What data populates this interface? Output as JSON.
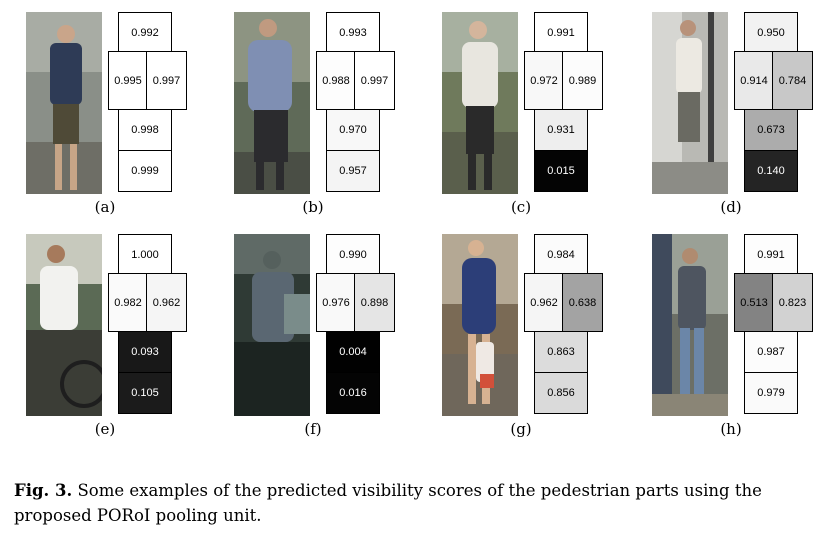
{
  "panels": [
    {
      "label": "(a)",
      "scores": {
        "top": "0.992",
        "left": "0.995",
        "right": "0.997",
        "mid": "0.998",
        "bottom": "0.999"
      },
      "shades": {
        "top": "#ffffff",
        "left": "#ffffff",
        "right": "#ffffff",
        "mid": "#ffffff",
        "bottom": "#ffffff"
      },
      "text_colors": {
        "top": "#000",
        "left": "#000",
        "right": "#000",
        "mid": "#000",
        "bottom": "#000"
      }
    },
    {
      "label": "(b)",
      "scores": {
        "top": "0.993",
        "left": "0.988",
        "right": "0.997",
        "mid": "0.970",
        "bottom": "0.957"
      },
      "shades": {
        "top": "#ffffff",
        "left": "#fdfdfd",
        "right": "#ffffff",
        "mid": "#f8f8f8",
        "bottom": "#f4f4f4"
      },
      "text_colors": {
        "top": "#000",
        "left": "#000",
        "right": "#000",
        "mid": "#000",
        "bottom": "#000"
      }
    },
    {
      "label": "(c)",
      "scores": {
        "top": "0.991",
        "left": "0.972",
        "right": "0.989",
        "mid": "0.931",
        "bottom": "0.015"
      },
      "shades": {
        "top": "#ffffff",
        "left": "#f8f8f8",
        "right": "#fcfcfc",
        "mid": "#eeeeee",
        "bottom": "#040404"
      },
      "text_colors": {
        "top": "#000",
        "left": "#000",
        "right": "#000",
        "mid": "#000",
        "bottom": "#fff"
      }
    },
    {
      "label": "(d)",
      "scores": {
        "top": "0.950",
        "left": "0.914",
        "right": "0.784",
        "mid": "0.673",
        "bottom": "0.140"
      },
      "shades": {
        "top": "#f2f2f2",
        "left": "#e9e9e9",
        "right": "#c8c8c8",
        "mid": "#acacac",
        "bottom": "#242424"
      },
      "text_colors": {
        "top": "#000",
        "left": "#000",
        "right": "#000",
        "mid": "#000",
        "bottom": "#fff"
      }
    },
    {
      "label": "(e)",
      "scores": {
        "top": "1.000",
        "left": "0.982",
        "right": "0.962",
        "mid": "0.093",
        "bottom": "0.105"
      },
      "shades": {
        "top": "#ffffff",
        "left": "#fafafa",
        "right": "#f5f5f5",
        "mid": "#181818",
        "bottom": "#1b1b1b"
      },
      "text_colors": {
        "top": "#000",
        "left": "#000",
        "right": "#000",
        "mid": "#fff",
        "bottom": "#fff"
      }
    },
    {
      "label": "(f)",
      "scores": {
        "top": "0.990",
        "left": "0.976",
        "right": "0.898",
        "mid": "0.004",
        "bottom": "0.016"
      },
      "shades": {
        "top": "#fdfdfd",
        "left": "#f9f9f9",
        "right": "#e5e5e5",
        "mid": "#010101",
        "bottom": "#040404"
      },
      "text_colors": {
        "top": "#000",
        "left": "#000",
        "right": "#000",
        "mid": "#fff",
        "bottom": "#fff"
      }
    },
    {
      "label": "(g)",
      "scores": {
        "top": "0.984",
        "left": "0.962",
        "right": "0.638",
        "mid": "0.863",
        "bottom": "0.856"
      },
      "shades": {
        "top": "#fbfbfb",
        "left": "#f5f5f5",
        "right": "#a3a3a3",
        "mid": "#dcdcdc",
        "bottom": "#dadada"
      },
      "text_colors": {
        "top": "#000",
        "left": "#000",
        "right": "#000",
        "mid": "#000",
        "bottom": "#000"
      }
    },
    {
      "label": "(h)",
      "scores": {
        "top": "0.991",
        "left": "0.513",
        "right": "0.823",
        "mid": "0.987",
        "bottom": "0.979"
      },
      "shades": {
        "top": "#fdfdfd",
        "left": "#838383",
        "right": "#d2d2d2",
        "mid": "#fcfcfc",
        "bottom": "#fafafa"
      },
      "text_colors": {
        "top": "#000",
        "left": "#000",
        "right": "#000",
        "mid": "#000",
        "bottom": "#000"
      }
    }
  ],
  "caption": {
    "prefix": "Fig. 3.",
    "text": " Some examples of the predicted visibility scores of the pedestrian parts using the proposed PORoI pooling unit."
  }
}
